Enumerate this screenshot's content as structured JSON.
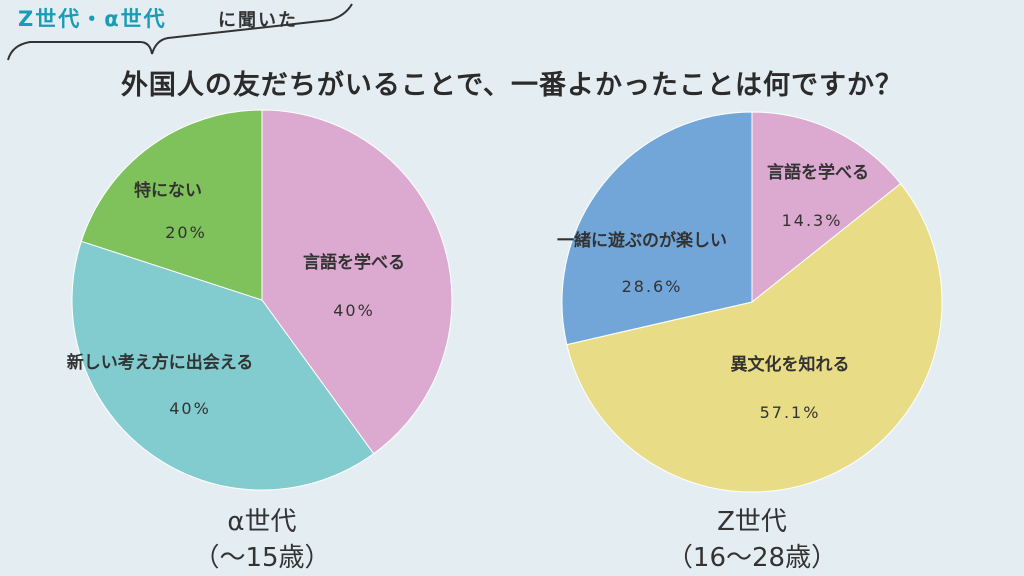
{
  "header": {
    "tag_highlight": "Z世代・α世代",
    "tag_rest": "に聞いた",
    "question": "外国人の友だちがいることで、一番よかったことは何ですか？"
  },
  "colors": {
    "background": "#e4edf1",
    "accent": "#1a9bb6",
    "pink": "#dcaad0",
    "teal": "#82cbcf",
    "green": "#7fc15a",
    "yellow": "#e8dc86",
    "blue": "#72a6d8"
  },
  "chart_data": [
    {
      "type": "pie",
      "caption": "α世代",
      "subcaption": "（～15歳）",
      "slices": [
        {
          "label": "言語を学べる",
          "value": 40,
          "display": "40%",
          "color": "#dcaad0"
        },
        {
          "label": "新しい考え方に出会える",
          "value": 40,
          "display": "40%",
          "color": "#82cbcf"
        },
        {
          "label": "特にない",
          "value": 20,
          "display": "20%",
          "color": "#7fc15a"
        }
      ]
    },
    {
      "type": "pie",
      "caption": "Z世代",
      "subcaption": "（16～28歳）",
      "slices": [
        {
          "label": "言語を学べる",
          "value": 14.3,
          "display": "14.3%",
          "color": "#dcaad0"
        },
        {
          "label": "異文化を知れる",
          "value": 57.1,
          "display": "57.1%",
          "color": "#e8dc86"
        },
        {
          "label": "一緒に遊ぶのが楽しい",
          "value": 28.6,
          "display": "28.6%",
          "color": "#72a6d8"
        }
      ]
    }
  ]
}
